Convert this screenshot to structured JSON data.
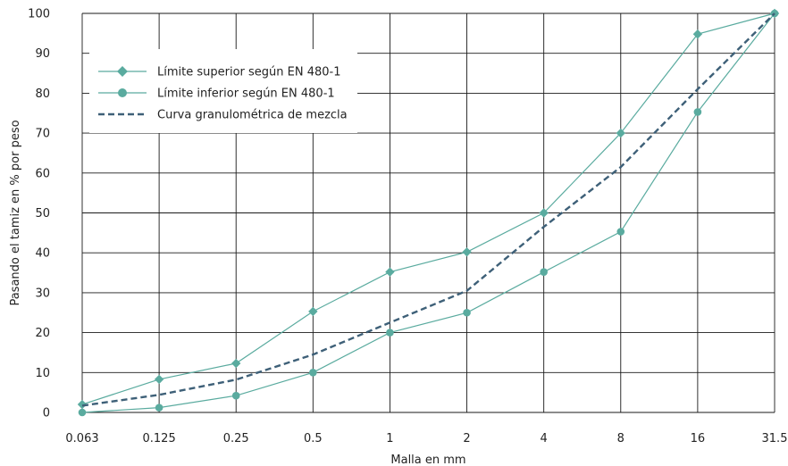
{
  "chart_data": {
    "type": "line",
    "x": [
      "0.063",
      "0.125",
      "0.25",
      "0.5",
      "1",
      "2",
      "4",
      "8",
      "16",
      "31.5"
    ],
    "xlabel": "Malla en mm",
    "ylabel": "Pasando el tamiz en % por peso",
    "ylim": [
      0,
      100
    ],
    "yticks": [
      0,
      10,
      20,
      30,
      40,
      50,
      60,
      70,
      80,
      90,
      100
    ],
    "grid": true,
    "legend_position": "top-left",
    "series": [
      {
        "name": "Límite superior según EN 480-1",
        "values": [
          2,
          8.3,
          12.3,
          25.3,
          35.2,
          40.2,
          50,
          70,
          94.8,
          100
        ],
        "color": "#5aab9f",
        "marker": "diamond",
        "dash": "solid"
      },
      {
        "name": "Límite inferior según EN 480-1",
        "values": [
          0,
          1.2,
          4.2,
          10,
          20,
          25,
          35.2,
          45.3,
          75.3,
          100
        ],
        "color": "#5aab9f",
        "marker": "circle",
        "dash": "solid"
      },
      {
        "name": "Curva granulométrica de mezcla",
        "values": [
          1.7,
          4.4,
          8.2,
          14.5,
          22.5,
          30.5,
          46.5,
          61.5,
          81,
          100
        ],
        "color": "#3e6078",
        "marker": "none",
        "dash": "dashed"
      }
    ]
  }
}
